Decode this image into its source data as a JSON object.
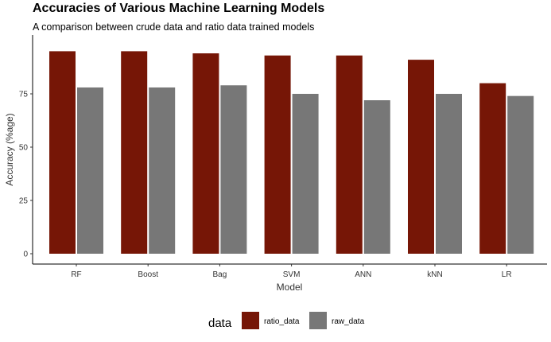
{
  "chart_data": {
    "type": "bar",
    "title": "Accuracies of Various Machine Learning Models",
    "subtitle": "A comparison between crude data and ratio data trained models",
    "xlabel": "Model",
    "ylabel": "Accuracy (%age)",
    "categories": [
      "RF",
      "Boost",
      "Bag",
      "SVM",
      "ANN",
      "kNN",
      "LR"
    ],
    "series": [
      {
        "name": "ratio_data",
        "color": "#761606",
        "values": [
          95,
          95,
          94,
          93,
          93,
          91,
          80
        ]
      },
      {
        "name": "raw_data",
        "color": "#777777",
        "values": [
          78,
          78,
          79,
          75,
          72,
          75,
          74
        ]
      }
    ],
    "ylim": [
      0,
      97
    ],
    "yticks": [
      0,
      25,
      50,
      75
    ],
    "grid": false,
    "legend_title": "data",
    "legend_position": "bottom"
  }
}
